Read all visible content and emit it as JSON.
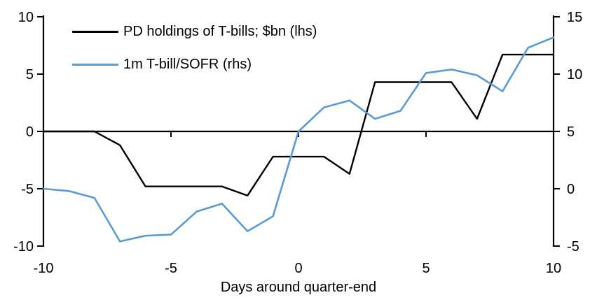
{
  "chart_data": {
    "type": "line",
    "title": "",
    "xlabel": "Days around quarter-end",
    "ylabel_left": "",
    "ylabel_right": "",
    "grid": false,
    "legend_position": "top-left",
    "x_range": [
      -10,
      10
    ],
    "x_ticks": [
      -10,
      -5,
      0,
      5,
      10
    ],
    "left_axis": {
      "range": [
        -10,
        10
      ],
      "ticks": [
        10,
        5,
        0,
        -5,
        -10
      ]
    },
    "right_axis": {
      "range": [
        -5,
        15
      ],
      "ticks": [
        15,
        10,
        5,
        0,
        -5
      ]
    },
    "x": [
      -10,
      -9,
      -8,
      -7,
      -6,
      -5,
      -4,
      -3,
      -2,
      -1,
      0,
      1,
      2,
      3,
      4,
      5,
      6,
      7,
      8,
      9,
      10
    ],
    "series": [
      {
        "name": "PD holdings of T-bills; $bn (lhs)",
        "axis": "left",
        "color": "#000000",
        "stroke_width": 2.4,
        "values": [
          0,
          0,
          0,
          -1.2,
          -4.8,
          -4.8,
          -4.8,
          -4.8,
          -5.6,
          -2.2,
          -2.2,
          -2.2,
          -3.7,
          4.3,
          4.3,
          4.3,
          4.3,
          1.1,
          6.7,
          6.7,
          6.7
        ]
      },
      {
        "name": "1m T-bill/SOFR (rhs)",
        "axis": "right",
        "color": "#5B9BD5",
        "stroke_width": 2.6,
        "values": [
          0.0,
          -0.2,
          -0.8,
          -4.6,
          -4.1,
          -4.0,
          -2.0,
          -1.3,
          -3.7,
          -2.4,
          5.0,
          7.1,
          7.7,
          6.1,
          6.8,
          10.1,
          10.4,
          9.9,
          8.5,
          12.3,
          13.2
        ]
      }
    ],
    "axis_color": "#000000"
  }
}
